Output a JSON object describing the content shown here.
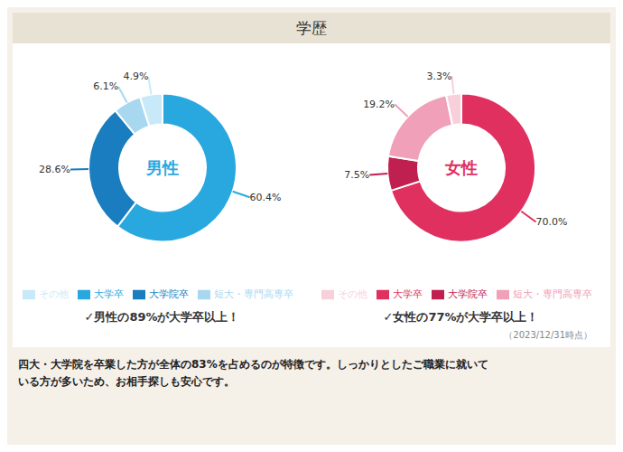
{
  "title": "学歴",
  "annotations": [
    "（2023/12/31時点）",
    "四大・大学院を卒業した方が全体の83%を占めるのが特徴です。しっかりとしたご職業に就いて",
    "いる方が多いため、お相手探しも安心です。"
  ],
  "chart_data": [
    {
      "type": "pie",
      "title": "男性",
      "categories": [
        "大学卒",
        "大学院卒",
        "短大・専門高専卒",
        "その他"
      ],
      "values": [
        60.4,
        28.6,
        6.1,
        4.9
      ],
      "value_labels": [
        "60.4%",
        "28.6%",
        "6.1%",
        "4.9%"
      ],
      "colors": [
        "#29a8e0",
        "#1a7dbf",
        "#a8d8f0",
        "#c8eaf8"
      ],
      "data_labels": true,
      "legend": "bottom",
      "annotations": [
        "✓男性の89%が大学卒以上！"
      ]
    },
    {
      "type": "pie",
      "title": "女性",
      "categories": [
        "大学卒",
        "大学院卒",
        "短大・専門高専卒",
        "その他"
      ],
      "values": [
        70.0,
        7.5,
        19.2,
        3.3
      ],
      "value_labels": [
        "70.0%",
        "7.5%",
        "19.2%",
        "3.3%"
      ],
      "colors": [
        "#e03060",
        "#c02050",
        "#f0a0b8",
        "#f8d0dc"
      ],
      "data_labels": true,
      "legend": "bottom",
      "annotations": [
        "✓女性の77%が大学卒以上！"
      ]
    }
  ]
}
